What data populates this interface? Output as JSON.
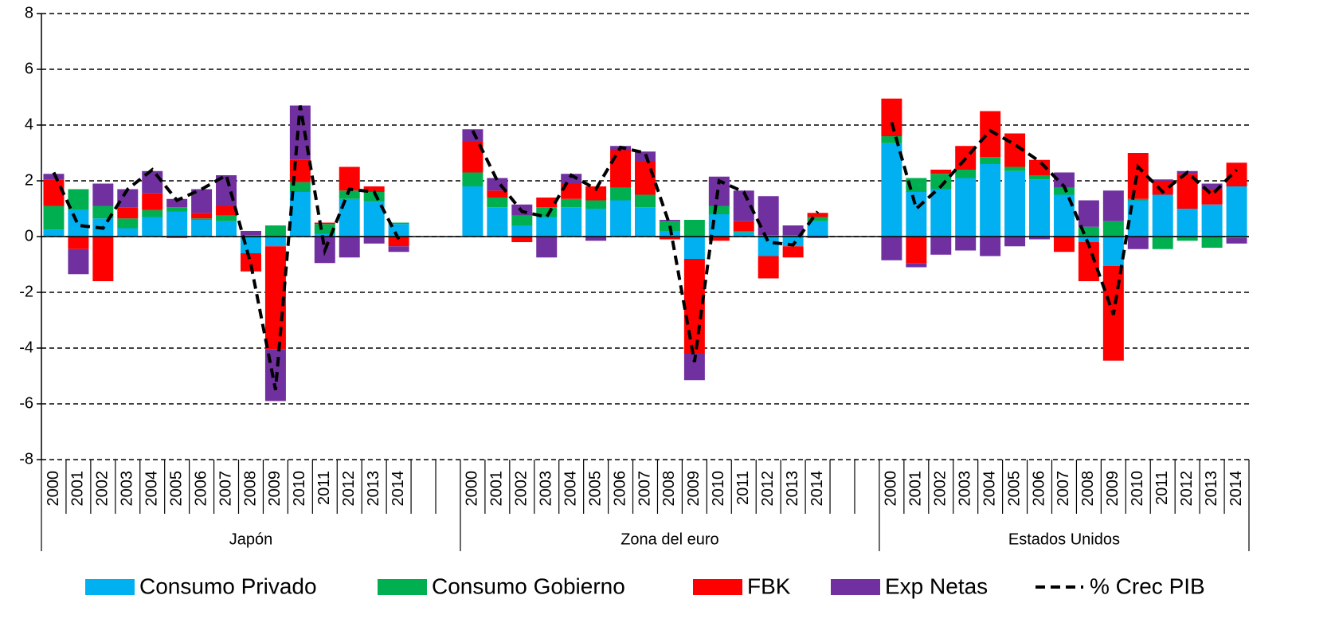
{
  "chart_data": {
    "type": "bar",
    "stacked": true,
    "grid": true,
    "ylim": [
      -8,
      8
    ],
    "yticks": [
      -8,
      -6,
      -4,
      -2,
      0,
      2,
      4,
      6,
      8
    ],
    "groups": [
      {
        "name": "Japón",
        "categories": [
          "2000",
          "2001",
          "2002",
          "2003",
          "2004",
          "2005",
          "2006",
          "2007",
          "2008",
          "2009",
          "2010",
          "2011",
          "2012",
          "2013",
          "2014",
          null,
          null
        ]
      },
      {
        "name": "Zona del euro",
        "categories": [
          "2000",
          "2001",
          "2002",
          "2003",
          "2004",
          "2005",
          "2006",
          "2007",
          "2008",
          "2009",
          "2010",
          "2011",
          "2012",
          "2013",
          "2014",
          null,
          null
        ]
      },
      {
        "name": "Estados Unidos",
        "categories": [
          "2000",
          "2001",
          "2002",
          "2003",
          "2004",
          "2005",
          "2006",
          "2007",
          "2008",
          "2009",
          "2010",
          "2011",
          "2012",
          "2013",
          "2014"
        ]
      }
    ],
    "series": [
      {
        "name": "Consumo Privado",
        "color": "#00b0f0",
        "values": [
          0.25,
          0.95,
          0.65,
          0.3,
          0.7,
          0.9,
          0.6,
          0.55,
          -0.6,
          -0.35,
          1.6,
          0.1,
          1.35,
          1.25,
          0.45,
          null,
          null,
          1.8,
          1.05,
          0.4,
          0.7,
          1.05,
          1.0,
          1.3,
          1.05,
          0.2,
          -0.8,
          0.8,
          0.15,
          -0.7,
          -0.35,
          0.55,
          null,
          null,
          3.35,
          1.6,
          1.7,
          2.1,
          2.6,
          2.35,
          2.05,
          1.5,
          -0.2,
          -1.05,
          1.3,
          1.5,
          1.0,
          1.15,
          1.8
        ]
      },
      {
        "name": "Consumo Gobierno",
        "color": "#00b050",
        "values": [
          0.85,
          0.75,
          0.45,
          0.35,
          0.25,
          0.15,
          0.05,
          0.2,
          0.05,
          0.4,
          0.35,
          0.35,
          0.3,
          0.35,
          0.05,
          null,
          null,
          0.5,
          0.35,
          0.35,
          0.35,
          0.3,
          0.3,
          0.45,
          0.45,
          0.35,
          0.6,
          0.3,
          0.05,
          0.05,
          0.05,
          0.15,
          null,
          null,
          0.25,
          0.5,
          0.55,
          0.3,
          0.25,
          0.15,
          0.15,
          0.25,
          0.35,
          0.55,
          0.05,
          -0.45,
          -0.15,
          -0.4,
          -0.05
        ]
      },
      {
        "name": "FBK",
        "color": "#ff0000",
        "values": [
          0.95,
          -0.45,
          -1.6,
          0.4,
          0.6,
          -0.05,
          0.2,
          0.35,
          -0.65,
          -3.7,
          0.8,
          0.05,
          0.85,
          0.2,
          -0.35,
          null,
          null,
          1.1,
          0.25,
          -0.2,
          0.35,
          0.55,
          0.5,
          1.35,
          1.2,
          -0.1,
          -3.4,
          -0.15,
          0.35,
          -0.8,
          -0.4,
          0.15,
          null,
          null,
          1.35,
          -0.95,
          0.15,
          0.85,
          1.65,
          1.2,
          0.55,
          -0.55,
          -1.4,
          -3.4,
          1.65,
          0.5,
          1.25,
          0.55,
          0.85
        ]
      },
      {
        "name": "Exp Netas",
        "color": "#7030a0",
        "values": [
          0.2,
          -0.9,
          0.8,
          0.65,
          0.8,
          0.3,
          0.85,
          1.1,
          0.15,
          -1.85,
          1.95,
          -0.95,
          -0.75,
          -0.25,
          -0.2,
          null,
          null,
          0.45,
          0.45,
          0.4,
          -0.75,
          0.35,
          -0.15,
          0.15,
          0.35,
          0.05,
          -0.95,
          1.05,
          1.1,
          1.4,
          0.35,
          -0.05,
          null,
          null,
          -0.85,
          -0.15,
          -0.65,
          -0.5,
          -0.7,
          -0.35,
          -0.1,
          0.55,
          0.95,
          1.1,
          -0.45,
          0.05,
          0.1,
          0.2,
          -0.2
        ]
      },
      {
        "name": "% Crec PIB",
        "type": "line",
        "color": "#000000",
        "values": [
          2.3,
          0.4,
          0.3,
          1.7,
          2.4,
          1.3,
          1.7,
          2.2,
          -1.0,
          -5.5,
          4.7,
          -0.5,
          1.7,
          1.6,
          -0.1,
          null,
          null,
          3.8,
          2.0,
          0.9,
          0.7,
          2.2,
          1.7,
          3.2,
          3.0,
          0.4,
          -4.5,
          2.0,
          1.6,
          -0.2,
          -0.3,
          0.9,
          null,
          null,
          4.1,
          1.0,
          1.8,
          2.8,
          3.8,
          3.3,
          2.7,
          1.8,
          -0.3,
          -2.8,
          2.5,
          1.6,
          2.3,
          1.5,
          2.4
        ]
      }
    ]
  }
}
